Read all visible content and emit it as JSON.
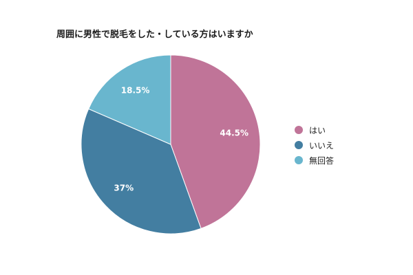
{
  "chart_data": {
    "type": "pie",
    "title": "周囲に男性で脱毛をした・している方はいますか",
    "categories": [
      "はい",
      "いいえ",
      "無回答"
    ],
    "values": [
      44.5,
      37,
      18.5
    ],
    "data_labels": [
      "44.5%",
      "37%",
      "18.5%"
    ],
    "colors": [
      "#c07498",
      "#437ea1",
      "#69b6ce"
    ],
    "legend_position": "right"
  }
}
